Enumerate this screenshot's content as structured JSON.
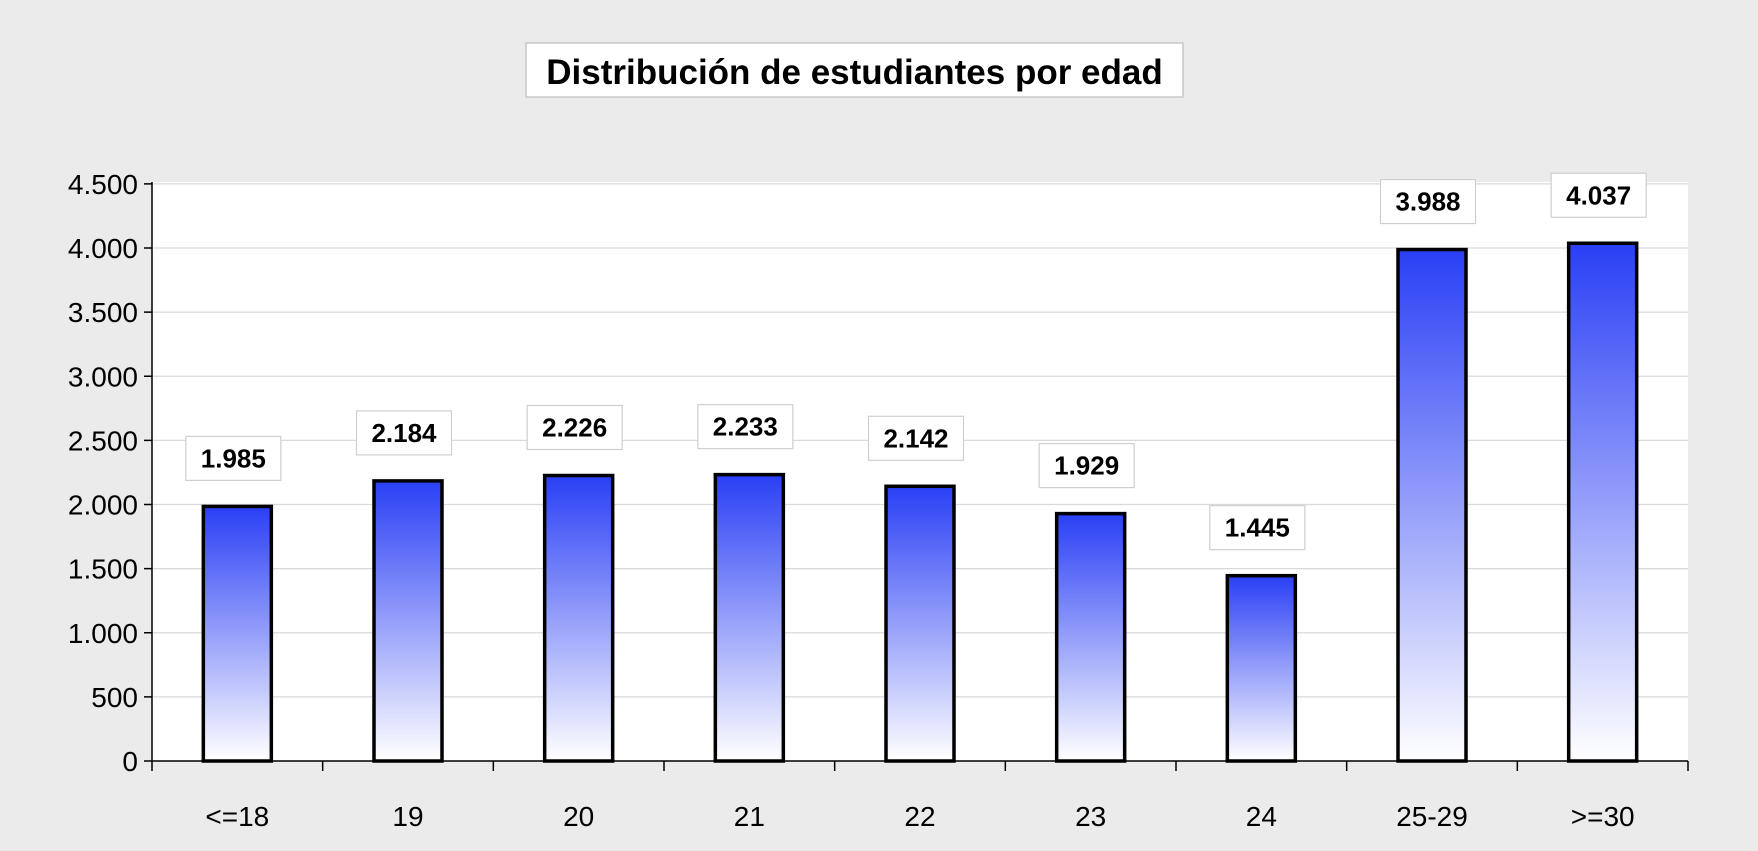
{
  "chart_data": {
    "type": "bar",
    "title": "Distribución de estudiantes por edad",
    "xlabel": "",
    "ylabel": "",
    "categories": [
      "<=18",
      "19",
      "20",
      "21",
      "22",
      "23",
      "24",
      "25-29",
      ">=30"
    ],
    "values": [
      1985,
      2184,
      2226,
      2233,
      2142,
      1929,
      1445,
      3988,
      4037
    ],
    "value_labels": [
      "1.985",
      "2.184",
      "2.226",
      "2.233",
      "2.142",
      "1.929",
      "1.445",
      "3.988",
      "4.037"
    ],
    "ylim": [
      0,
      4500
    ],
    "y_ticks": [
      0,
      500,
      1000,
      1500,
      2000,
      2500,
      3000,
      3500,
      4000,
      4500
    ],
    "y_tick_labels": [
      "0",
      "500",
      "1.000",
      "1.500",
      "2.000",
      "2.500",
      "3.000",
      "3.500",
      "4.000",
      "4.500"
    ],
    "grid": true,
    "legend": "none",
    "colors": {
      "bar_top": "#2a3ff5",
      "bar_bottom": "#ffffff",
      "bar_outline": "#000000",
      "plot_background": "#ffffff",
      "page_background": "#ebebeb",
      "gridline": "#d9d9d9"
    }
  }
}
